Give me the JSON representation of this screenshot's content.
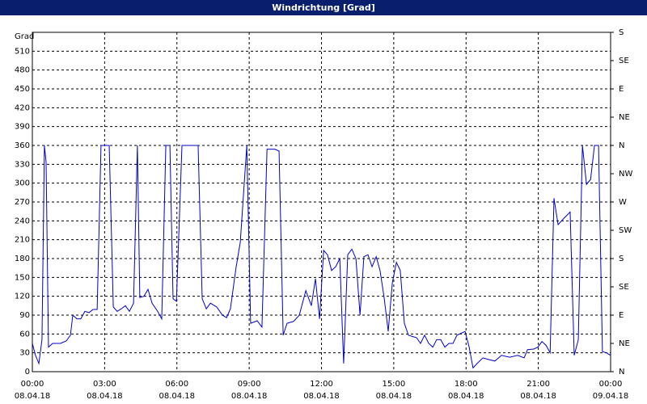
{
  "chart_data": {
    "type": "line",
    "title": "Windrichtung [Grad]",
    "ylabel": "Grad",
    "ylim": [
      0,
      540
    ],
    "yticks": [
      0,
      30,
      60,
      90,
      120,
      150,
      180,
      210,
      240,
      270,
      300,
      330,
      360,
      390,
      420,
      450,
      480,
      510
    ],
    "y2lim": [
      0,
      540
    ],
    "y2ticks": [
      {
        "value": 0,
        "label": "N"
      },
      {
        "value": 45,
        "label": "NE"
      },
      {
        "value": 90,
        "label": "E"
      },
      {
        "value": 135,
        "label": "SE"
      },
      {
        "value": 180,
        "label": "S"
      },
      {
        "value": 225,
        "label": "SW"
      },
      {
        "value": 270,
        "label": "W"
      },
      {
        "value": 315,
        "label": "NW"
      },
      {
        "value": 360,
        "label": "N"
      },
      {
        "value": 405,
        "label": "NE"
      },
      {
        "value": 450,
        "label": "E"
      },
      {
        "value": 495,
        "label": "SE"
      },
      {
        "value": 540,
        "label": "S"
      }
    ],
    "xlim": [
      0,
      24
    ],
    "xticks": [
      {
        "value": 0,
        "label": "00:00",
        "date": "08.04.18"
      },
      {
        "value": 3,
        "label": "03:00",
        "date": "08.04.18"
      },
      {
        "value": 6,
        "label": "06:00",
        "date": "08.04.18"
      },
      {
        "value": 9,
        "label": "09:00",
        "date": "08.04.18"
      },
      {
        "value": 12,
        "label": "12:00",
        "date": "08.04.18"
      },
      {
        "value": 15,
        "label": "15:00",
        "date": "08.04.18"
      },
      {
        "value": 18,
        "label": "18:00",
        "date": "08.04.18"
      },
      {
        "value": 21,
        "label": "21:00",
        "date": "08.04.18"
      },
      {
        "value": 24,
        "label": "00:00",
        "date": "09.04.18"
      }
    ],
    "grid": true,
    "series": [
      {
        "color": "#0000cc",
        "x": [
          0,
          0.13,
          0.27,
          0.4,
          0.5,
          0.57,
          0.67,
          0.84,
          1.17,
          1.41,
          1.58,
          1.68,
          1.85,
          2.01,
          2.18,
          2.35,
          2.52,
          2.69,
          2.85,
          3.19,
          3.36,
          3.52,
          3.69,
          3.86,
          4.03,
          4.2,
          4.36,
          4.46,
          4.63,
          4.8,
          4.97,
          5.2,
          5.37,
          5.54,
          5.71,
          5.84,
          5.98,
          6.21,
          6.88,
          7.05,
          7.22,
          7.39,
          7.65,
          7.89,
          8.06,
          8.22,
          8.46,
          8.63,
          8.9,
          9.06,
          9.33,
          9.53,
          9.74,
          10.07,
          10.24,
          10.41,
          10.57,
          10.84,
          11.08,
          11.35,
          11.58,
          11.75,
          11.92,
          12.09,
          12.25,
          12.42,
          12.59,
          12.76,
          12.92,
          13.09,
          13.26,
          13.43,
          13.6,
          13.76,
          13.93,
          14.1,
          14.27,
          14.43,
          14.6,
          14.77,
          14.94,
          15.11,
          15.27,
          15.44,
          15.61,
          15.95,
          16.11,
          16.28,
          16.45,
          16.62,
          16.78,
          16.95,
          17.12,
          17.29,
          17.46,
          17.62,
          17.96,
          18.13,
          18.29,
          18.46,
          18.7,
          18.97,
          19.2,
          19.47,
          19.81,
          20.14,
          20.41,
          20.55,
          20.81,
          20.98,
          21.15,
          21.32,
          21.49,
          21.65,
          21.82,
          22.06,
          22.32,
          22.49,
          22.66,
          22.83,
          23.0,
          23.17,
          23.33,
          23.5,
          23.66,
          23.83,
          24.0
        ],
        "values": [
          45,
          26,
          13,
          51,
          360,
          334,
          39,
          45,
          45,
          49,
          58,
          90,
          84,
          84,
          96,
          94,
          99,
          99,
          360,
          360,
          103,
          96,
          100,
          105,
          96,
          109,
          360,
          118,
          120,
          131,
          109,
          96,
          84,
          360,
          360,
          116,
          112,
          360,
          360,
          116,
          100,
          109,
          103,
          90,
          86,
          100,
          167,
          206,
          360,
          77,
          81,
          71,
          354,
          354,
          351,
          58,
          77,
          80,
          90,
          129,
          105,
          148,
          84,
          193,
          186,
          161,
          167,
          180,
          13,
          186,
          195,
          180,
          90,
          183,
          186,
          167,
          183,
          161,
          118,
          64,
          141,
          174,
          161,
          77,
          58,
          54,
          45,
          58,
          45,
          39,
          51,
          51,
          39,
          45,
          45,
          58,
          64,
          39,
          6,
          13,
          22,
          19,
          17,
          26,
          23,
          26,
          22,
          35,
          36,
          39,
          48,
          42,
          30,
          276,
          234,
          244,
          254,
          26,
          51,
          360,
          298,
          306,
          360,
          360,
          32,
          30,
          26
        ]
      }
    ]
  }
}
